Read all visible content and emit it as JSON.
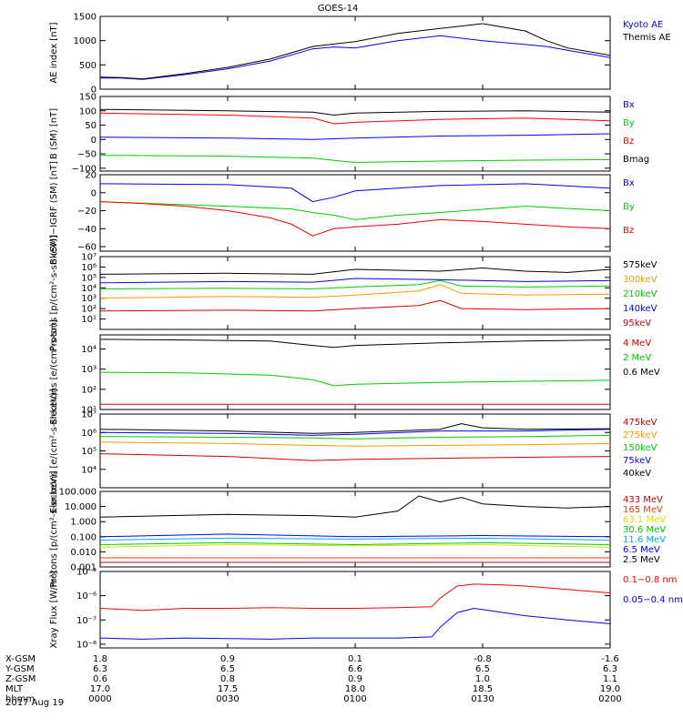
{
  "title": "GOES-14",
  "date_label": "2017 Aug 19",
  "ephemeris": {
    "rows": [
      {
        "label": "X-GSM",
        "values": [
          "1.8",
          "0.9",
          "0.1",
          "-0.8",
          "-1.6"
        ]
      },
      {
        "label": "Y-GSM",
        "values": [
          "6.3",
          "6.5",
          "6.6",
          "6.5",
          "6.3"
        ]
      },
      {
        "label": "Z-GSM",
        "values": [
          "0.6",
          "0.8",
          "0.9",
          "1.0",
          "1.1"
        ]
      },
      {
        "label": "MLT",
        "values": [
          "17.0",
          "17.5",
          "18.0",
          "18.5",
          "19.0"
        ]
      },
      {
        "label": "hhmm",
        "values": [
          "0000",
          "0030",
          "0100",
          "0130",
          "0200"
        ]
      }
    ]
  },
  "chart_data": [
    {
      "type": "line",
      "ylabel": "AE index [nT]",
      "ylim": [
        0,
        1500
      ],
      "yscale": "linear",
      "yticks": [
        {
          "v": 0,
          "t": "0"
        },
        {
          "v": 500,
          "t": "500"
        },
        {
          "v": 1000,
          "t": "1000"
        },
        {
          "v": 1500,
          "t": "1500"
        }
      ],
      "series": [
        {
          "name": "Kyoto AE",
          "color": "#0000ff",
          "x": [
            0,
            5,
            10,
            20,
            30,
            40,
            50,
            55,
            60,
            70,
            80,
            90,
            100,
            105,
            110,
            120
          ],
          "y": [
            230,
            230,
            200,
            300,
            420,
            580,
            830,
            870,
            850,
            1000,
            1100,
            1000,
            920,
            880,
            800,
            650
          ]
        },
        {
          "name": "Themis AE",
          "color": "#000000",
          "x": [
            0,
            5,
            10,
            20,
            30,
            40,
            50,
            55,
            60,
            70,
            80,
            90,
            100,
            105,
            110,
            120
          ],
          "y": [
            250,
            240,
            210,
            320,
            450,
            620,
            880,
            930,
            980,
            1150,
            1250,
            1350,
            1200,
            1000,
            850,
            700
          ]
        }
      ]
    },
    {
      "type": "line",
      "ylabel": "B (SM) [nT]",
      "ylim": [
        -110,
        150
      ],
      "yscale": "linear",
      "yticks": [
        {
          "v": -100,
          "t": "−100"
        },
        {
          "v": -50,
          "t": "−50"
        },
        {
          "v": 0,
          "t": "0"
        },
        {
          "v": 50,
          "t": "50"
        },
        {
          "v": 100,
          "t": "100"
        },
        {
          "v": 150,
          "t": "150"
        }
      ],
      "series": [
        {
          "name": "Bx",
          "color": "#0000ff",
          "x": [
            0,
            30,
            50,
            60,
            80,
            100,
            120
          ],
          "y": [
            8,
            5,
            0,
            5,
            12,
            15,
            20
          ]
        },
        {
          "name": "By",
          "color": "#00cc00",
          "x": [
            0,
            30,
            50,
            60,
            80,
            100,
            120
          ],
          "y": [
            -55,
            -58,
            -65,
            -80,
            -75,
            -72,
            -70
          ]
        },
        {
          "name": "Bz",
          "color": "#ff0000",
          "x": [
            0,
            30,
            50,
            55,
            60,
            80,
            100,
            120
          ],
          "y": [
            92,
            85,
            75,
            55,
            60,
            70,
            75,
            65
          ]
        },
        {
          "name": "Bmag",
          "color": "#000000",
          "x": [
            0,
            30,
            50,
            55,
            60,
            80,
            100,
            120
          ],
          "y": [
            105,
            100,
            95,
            85,
            92,
            98,
            100,
            95
          ]
        }
      ]
    },
    {
      "type": "line",
      "ylabel": "B (SM)−IGRF (SM) [nT]",
      "ylim": [
        -65,
        20
      ],
      "yscale": "linear",
      "yticks": [
        {
          "v": -60,
          "t": "−60"
        },
        {
          "v": -40,
          "t": "−40"
        },
        {
          "v": -20,
          "t": "−20"
        },
        {
          "v": 0,
          "t": "0"
        },
        {
          "v": 20,
          "t": "20"
        }
      ],
      "series": [
        {
          "name": "Bx",
          "color": "#0000ff",
          "x": [
            0,
            30,
            45,
            50,
            55,
            60,
            70,
            80,
            100,
            120
          ],
          "y": [
            10,
            9,
            5,
            -10,
            -5,
            2,
            5,
            8,
            10,
            5
          ]
        },
        {
          "name": "By",
          "color": "#00cc00",
          "x": [
            0,
            30,
            45,
            50,
            55,
            60,
            70,
            80,
            100,
            120
          ],
          "y": [
            -10,
            -15,
            -18,
            -22,
            -25,
            -30,
            -25,
            -22,
            -15,
            -20
          ]
        },
        {
          "name": "Bz",
          "color": "#ff0000",
          "x": [
            0,
            10,
            20,
            30,
            40,
            45,
            50,
            55,
            60,
            70,
            80,
            90,
            100,
            110,
            120
          ],
          "y": [
            -10,
            -12,
            -15,
            -20,
            -28,
            -35,
            -48,
            -40,
            -38,
            -35,
            -30,
            -32,
            -35,
            -38,
            -40
          ]
        }
      ]
    },
    {
      "type": "line",
      "ylabel": "Protons [p/(cm²-s-sr-keV)]",
      "ylim": [
        1,
        10000000
      ],
      "yscale": "log",
      "yticks": [
        {
          "v": 10,
          "t": "10¹"
        },
        {
          "v": 100,
          "t": "10²"
        },
        {
          "v": 1000,
          "t": "10³"
        },
        {
          "v": 10000,
          "t": "10⁴"
        },
        {
          "v": 100000,
          "t": "10⁵"
        },
        {
          "v": 1000000,
          "t": "10⁶"
        },
        {
          "v": 10000000,
          "t": "10⁷"
        }
      ],
      "series": [
        {
          "name": "575keV",
          "color": "#000000",
          "x": [
            0,
            30,
            50,
            60,
            80,
            90,
            100,
            110,
            120
          ],
          "y": [
            200000,
            250000,
            200000,
            600000,
            400000,
            800000,
            400000,
            300000,
            600000
          ]
        },
        {
          "name": "300keV",
          "color": "#ff9900",
          "x": [
            0,
            30,
            50,
            60,
            75,
            80,
            85,
            100,
            120
          ],
          "y": [
            1000,
            1500,
            1200,
            2000,
            5000,
            20000,
            3000,
            2000,
            2500
          ]
        },
        {
          "name": "210keV",
          "color": "#00cc00",
          "x": [
            0,
            30,
            50,
            60,
            75,
            80,
            85,
            100,
            120
          ],
          "y": [
            8000,
            9000,
            8000,
            12000,
            20000,
            50000,
            15000,
            12000,
            15000
          ]
        },
        {
          "name": "140keV",
          "color": "#0000ff",
          "x": [
            0,
            30,
            50,
            60,
            80,
            100,
            120
          ],
          "y": [
            30000,
            40000,
            35000,
            80000,
            60000,
            40000,
            50000
          ]
        },
        {
          "name": "95keV",
          "color": "#cc0000",
          "x": [
            0,
            30,
            50,
            60,
            75,
            80,
            85,
            100,
            120
          ],
          "y": [
            60,
            70,
            60,
            100,
            200,
            600,
            100,
            80,
            100
          ]
        }
      ]
    },
    {
      "type": "line",
      "ylabel": "Electrons [e/(cm²-s-sr)]",
      "ylim": [
        10,
        50000
      ],
      "yscale": "log",
      "yticks": [
        {
          "v": 10,
          "t": "10¹"
        },
        {
          "v": 100,
          "t": "10²"
        },
        {
          "v": 1000,
          "t": "10³"
        },
        {
          "v": 10000,
          "t": "10⁴"
        }
      ],
      "series": [
        {
          "name": "4 MeV",
          "color": "#cc0000",
          "x": [
            0,
            120
          ],
          "y": [
            18,
            18
          ]
        },
        {
          "name": "2 MeV",
          "color": "#00cc00",
          "x": [
            0,
            20,
            40,
            50,
            55,
            60,
            80,
            100,
            120
          ],
          "y": [
            700,
            650,
            500,
            300,
            150,
            180,
            220,
            250,
            280
          ]
        },
        {
          "name": "0.6 MeV",
          "color": "#000000",
          "x": [
            0,
            20,
            40,
            50,
            55,
            60,
            80,
            100,
            120
          ],
          "y": [
            30000,
            28000,
            25000,
            15000,
            12000,
            15000,
            20000,
            25000,
            28000
          ]
        }
      ]
    },
    {
      "type": "line",
      "ylabel": "Electrons [e/(cm²-s-sr-keV)]",
      "ylim": [
        1000,
        10000000
      ],
      "yscale": "log",
      "yticks": [
        {
          "v": 10000,
          "t": "10⁴"
        },
        {
          "v": 100000,
          "t": "10⁵"
        },
        {
          "v": 1000000,
          "t": "10⁶"
        },
        {
          "v": 10000000,
          "t": "10⁷"
        }
      ],
      "series": [
        {
          "name": "475keV",
          "color": "#cc0000",
          "x": [
            0,
            30,
            50,
            60,
            80,
            100,
            120
          ],
          "y": [
            70000,
            50000,
            30000,
            35000,
            40000,
            45000,
            50000
          ]
        },
        {
          "name": "275keV",
          "color": "#ff9900",
          "x": [
            0,
            30,
            50,
            60,
            80,
            100,
            120
          ],
          "y": [
            300000,
            250000,
            200000,
            180000,
            200000,
            220000,
            250000
          ]
        },
        {
          "name": "150keV",
          "color": "#00cc00",
          "x": [
            0,
            30,
            50,
            60,
            80,
            100,
            120
          ],
          "y": [
            600000,
            550000,
            500000,
            450000,
            550000,
            600000,
            700000
          ]
        },
        {
          "name": "75keV",
          "color": "#0000ff",
          "x": [
            0,
            30,
            50,
            60,
            80,
            100,
            120
          ],
          "y": [
            1000000,
            900000,
            700000,
            800000,
            1200000,
            1200000,
            1500000
          ]
        },
        {
          "name": "40keV",
          "color": "#000000",
          "x": [
            0,
            30,
            50,
            60,
            80,
            85,
            90,
            100,
            120
          ],
          "y": [
            1500000,
            1200000,
            900000,
            1000000,
            1500000,
            3000000,
            1800000,
            1500000,
            1600000
          ]
        }
      ]
    },
    {
      "type": "line",
      "ylabel": "Protons [p/(cm²-s-sr-keV)]",
      "ylim": [
        0.001,
        100
      ],
      "yscale": "log",
      "yticks": [
        {
          "v": 0.001,
          "t": "0.001"
        },
        {
          "v": 0.01,
          "t": "0.010"
        },
        {
          "v": 0.1,
          "t": "0.100"
        },
        {
          "v": 1,
          "t": "1.000"
        },
        {
          "v": 10,
          "t": "10.000"
        },
        {
          "v": 100,
          "t": "100.000"
        }
      ],
      "series": [
        {
          "name": "433 MeV",
          "color": "#cc0000",
          "x": [
            0,
            120
          ],
          "y": [
            0.002,
            0.002
          ]
        },
        {
          "name": "165 MeV",
          "color": "#ff3300",
          "x": [
            0,
            120
          ],
          "y": [
            0.004,
            0.004
          ]
        },
        {
          "name": "63.1 MeV",
          "color": "#dddd00",
          "x": [
            0,
            30,
            60,
            90,
            120
          ],
          "y": [
            0.02,
            0.03,
            0.025,
            0.03,
            0.02
          ]
        },
        {
          "name": "30.6 MeV",
          "color": "#00cc00",
          "x": [
            0,
            30,
            60,
            90,
            120
          ],
          "y": [
            0.03,
            0.04,
            0.03,
            0.04,
            0.03
          ]
        },
        {
          "name": "11.6 MeV",
          "color": "#00aaff",
          "x": [
            0,
            30,
            60,
            90,
            120
          ],
          "y": [
            0.06,
            0.08,
            0.07,
            0.08,
            0.06
          ]
        },
        {
          "name": "6.5 MeV",
          "color": "#0000ff",
          "x": [
            0,
            30,
            60,
            90,
            120
          ],
          "y": [
            0.1,
            0.15,
            0.1,
            0.12,
            0.1
          ]
        },
        {
          "name": "2.5 MeV",
          "color": "#000000",
          "x": [
            0,
            30,
            50,
            60,
            70,
            75,
            80,
            85,
            90,
            100,
            110,
            120
          ],
          "y": [
            2,
            3,
            2.5,
            2,
            5,
            50,
            20,
            40,
            15,
            10,
            8,
            10
          ]
        }
      ]
    },
    {
      "type": "line",
      "ylabel": "Xray Flux [W/m²]",
      "ylim": [
        7e-09,
        1e-05
      ],
      "yscale": "log",
      "yticks": [
        {
          "v": 1e-08,
          "t": "10⁻⁸"
        },
        {
          "v": 1e-07,
          "t": "10⁻⁷"
        },
        {
          "v": 1e-06,
          "t": "10⁻⁶"
        },
        {
          "v": 1e-05,
          "t": "10⁻⁵"
        }
      ],
      "series": [
        {
          "name": "0.1−0.8 nm",
          "color": "#ff0000",
          "x": [
            0,
            10,
            20,
            30,
            40,
            50,
            60,
            70,
            78,
            80,
            84,
            88,
            95,
            100,
            110,
            120
          ],
          "y": [
            3e-07,
            2.5e-07,
            3e-07,
            3e-07,
            3.2e-07,
            3e-07,
            3e-07,
            3.2e-07,
            3.5e-07,
            8e-07,
            2.5e-06,
            3e-06,
            2.8e-06,
            2.5e-06,
            1.8e-06,
            1.3e-06
          ]
        },
        {
          "name": "0.05−0.4 nm",
          "color": "#0000ff",
          "x": [
            0,
            10,
            20,
            30,
            40,
            50,
            60,
            70,
            78,
            80,
            84,
            88,
            95,
            100,
            110,
            120
          ],
          "y": [
            1.8e-08,
            1.6e-08,
            1.8e-08,
            1.7e-08,
            1.6e-08,
            1.8e-08,
            1.8e-08,
            1.8e-08,
            2e-08,
            5e-08,
            2e-07,
            3e-07,
            2e-07,
            1.5e-07,
            1e-07,
            7e-08
          ]
        }
      ]
    }
  ]
}
